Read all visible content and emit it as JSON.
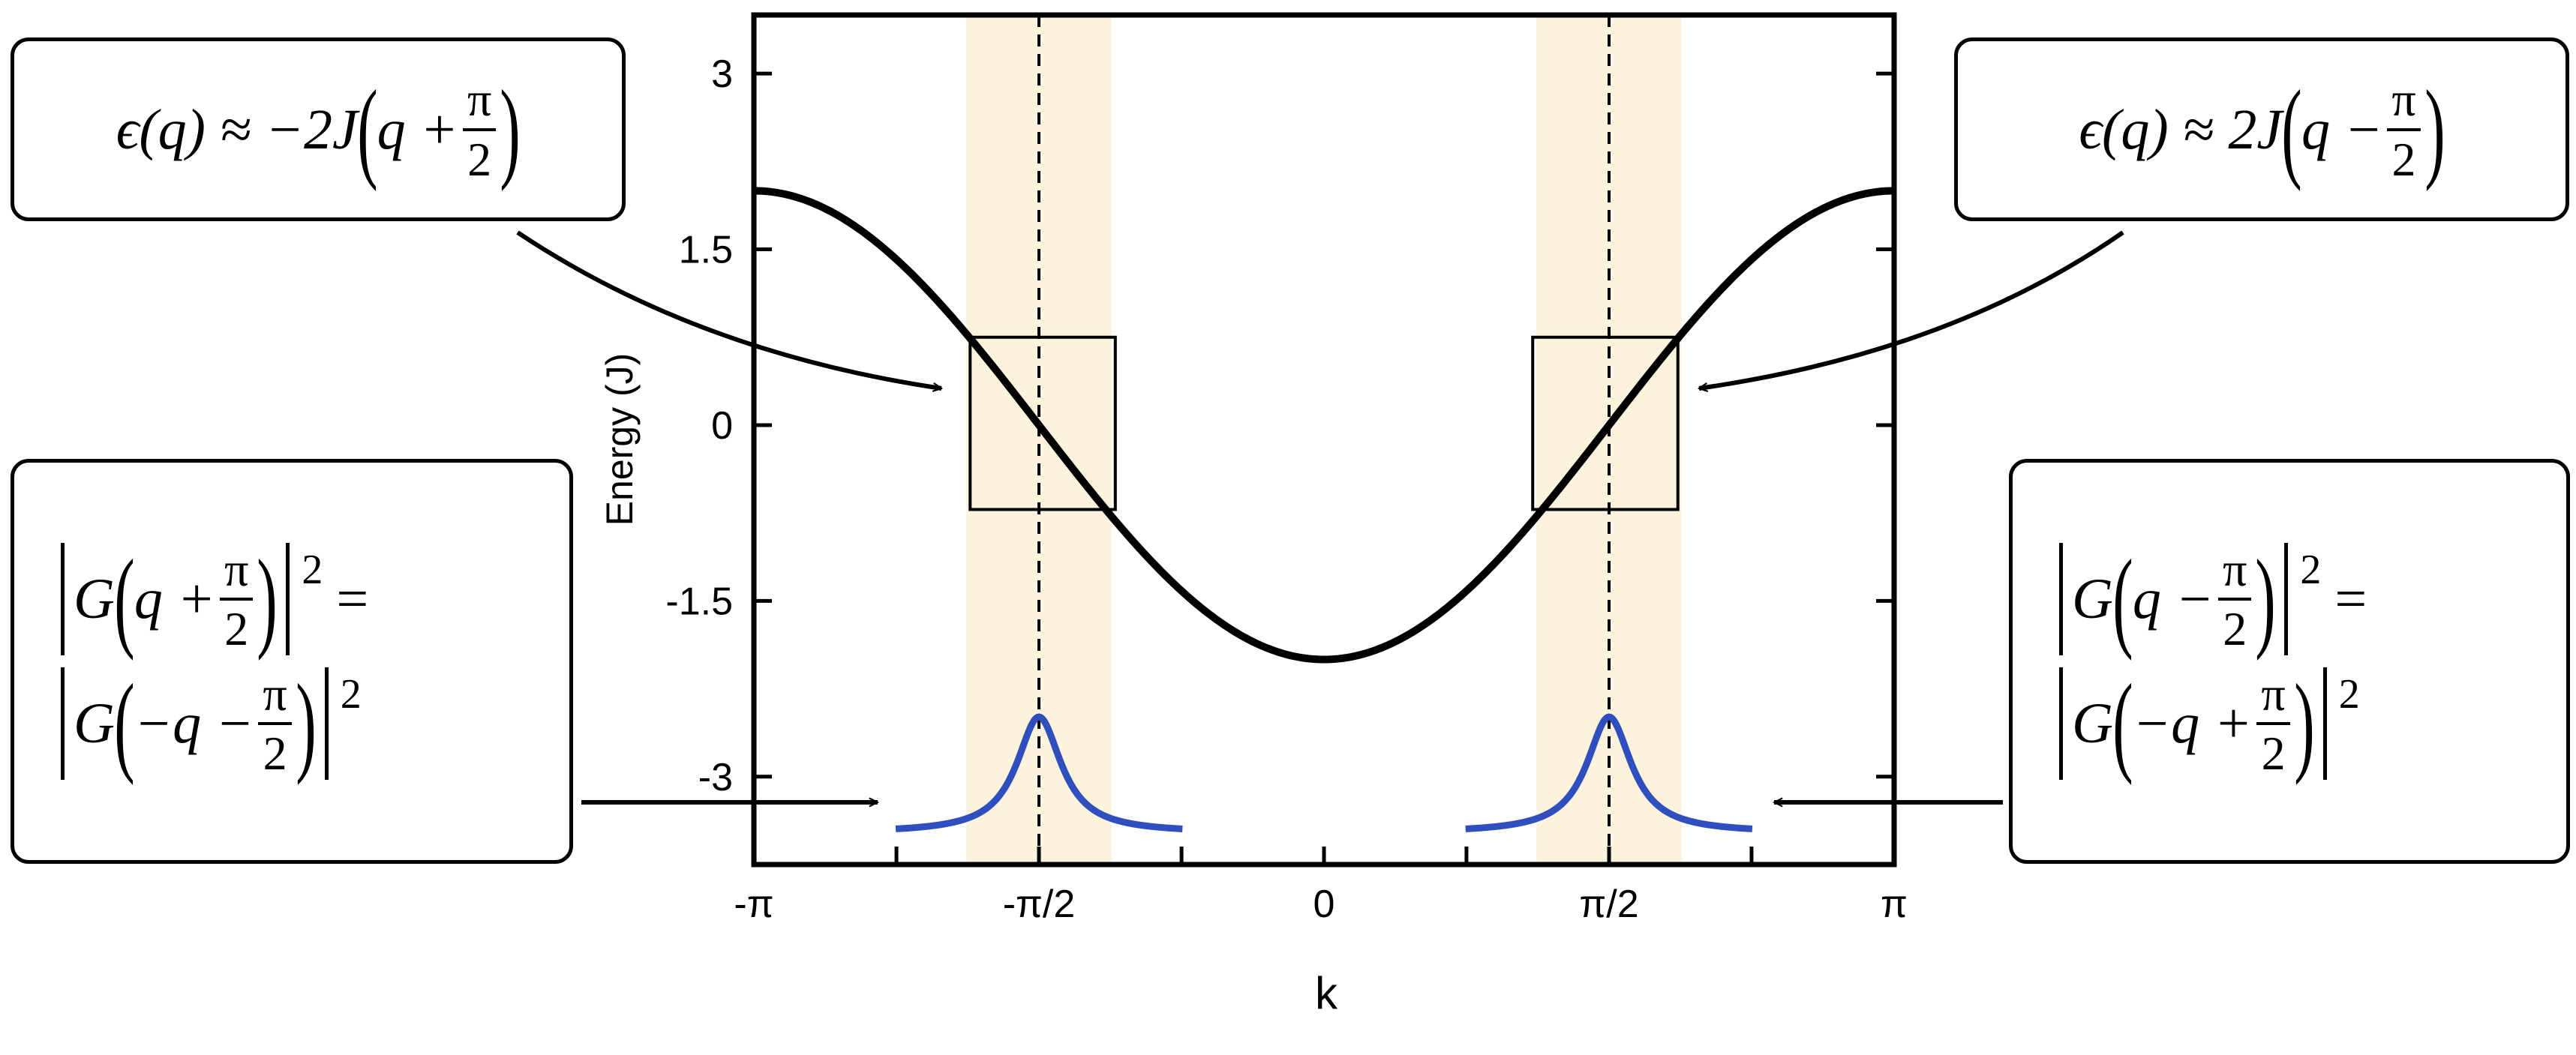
{
  "chart_data": {
    "type": "line",
    "xlabel": "k",
    "ylabel": "Energy (J)",
    "xlim": [
      -3.14159,
      3.14159
    ],
    "ylim": [
      -3.75,
      3.5
    ],
    "x_ticks": [
      {
        "value": -3.14159,
        "label": "-π"
      },
      {
        "value": -1.5708,
        "label": "-π/2"
      },
      {
        "value": 0,
        "label": "0"
      },
      {
        "value": 1.5708,
        "label": "π/2"
      },
      {
        "value": 3.14159,
        "label": "π"
      }
    ],
    "x_minor_ticks": [
      -2.356,
      -0.785,
      0.785,
      2.356
    ],
    "y_ticks": [
      {
        "value": 3,
        "label": "3"
      },
      {
        "value": 1.5,
        "label": "1.5"
      },
      {
        "value": 0,
        "label": "0"
      },
      {
        "value": -1.5,
        "label": "-1.5"
      },
      {
        "value": -3,
        "label": "-3"
      }
    ],
    "dispersion": {
      "formula": "-2cos(k)",
      "amplitude": 2,
      "color": "#000000"
    },
    "shaded_bands": [
      {
        "center": -1.5708,
        "half_width": 0.4,
        "color": "#fbf3dc"
      },
      {
        "center": 1.5708,
        "half_width": 0.4,
        "color": "#fbf3dc"
      }
    ],
    "dashed_lines": [
      -1.5708,
      1.5708
    ],
    "zoom_boxes": [
      {
        "x": [
          -1.95,
          -1.15
        ],
        "y": [
          -0.72,
          0.75
        ]
      },
      {
        "x": [
          1.15,
          1.95
        ],
        "y": [
          -0.72,
          0.75
        ]
      }
    ],
    "lorentzian_peaks": [
      {
        "center": -1.5708,
        "x_range": [
          -2.36,
          -0.78
        ],
        "baseline": -3.48,
        "peak": -2.49,
        "width": 0.15,
        "color": "#2f4fbf"
      },
      {
        "center": 1.5708,
        "x_range": [
          0.78,
          2.36
        ],
        "baseline": -3.48,
        "peak": -2.49,
        "width": 0.15,
        "color": "#2f4fbf"
      }
    ]
  },
  "equations": {
    "top_left": {
      "lhs": "ϵ(q) ≈ −2J",
      "inner": "q +",
      "num": "π",
      "den": "2"
    },
    "top_right": {
      "lhs": "ϵ(q) ≈ 2J",
      "inner": "q −",
      "num": "π",
      "den": "2"
    },
    "bottom_left": {
      "line1": {
        "g": "G",
        "inner": "q +",
        "num": "π",
        "den": "2",
        "exp": "2",
        "eq": "="
      },
      "line2": {
        "g": "G",
        "inner": "−q −",
        "num": "π",
        "den": "2",
        "exp": "2"
      }
    },
    "bottom_right": {
      "line1": {
        "g": "G",
        "inner": "q −",
        "num": "π",
        "den": "2",
        "exp": "2",
        "eq": "="
      },
      "line2": {
        "g": "G",
        "inner": "−q +",
        "num": "π",
        "den": "2",
        "exp": "2"
      }
    }
  }
}
